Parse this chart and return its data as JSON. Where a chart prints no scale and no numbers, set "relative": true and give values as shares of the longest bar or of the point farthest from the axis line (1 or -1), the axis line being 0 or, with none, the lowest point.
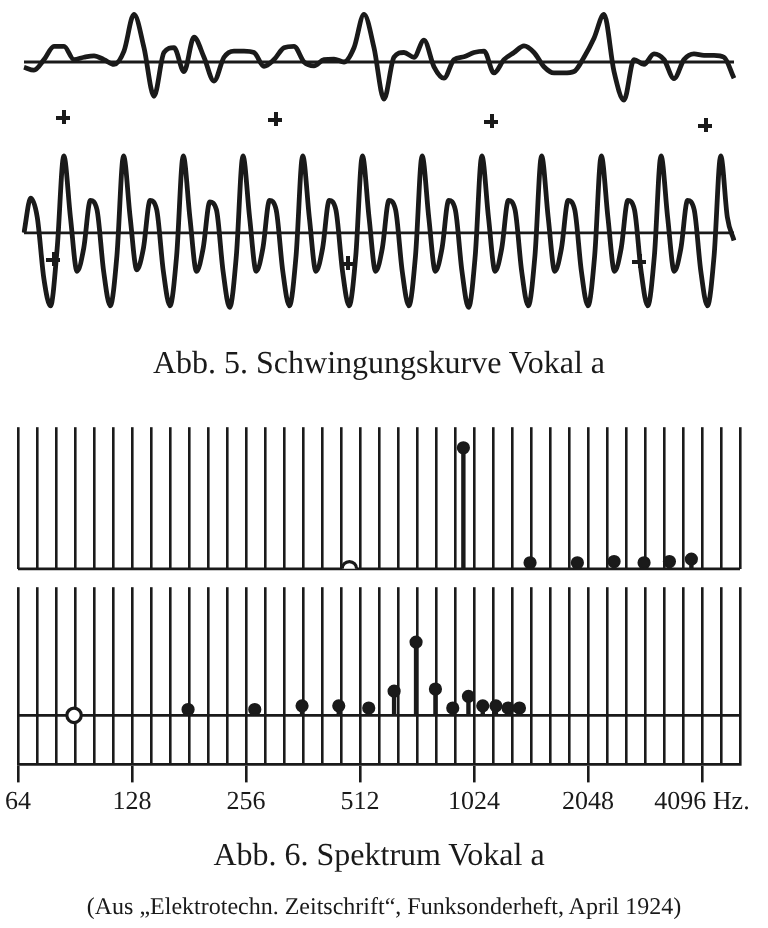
{
  "chart_data": [
    {
      "type": "line",
      "relative": true,
      "tick_labels": false,
      "grid": false,
      "legend": false,
      "marker": "none",
      "line_style": "solid",
      "categories": [
        null,
        null,
        null,
        null,
        null,
        null,
        null,
        null,
        null,
        null,
        null,
        null,
        null,
        null,
        null,
        null,
        null,
        null,
        null,
        null,
        null,
        null,
        null,
        null,
        null,
        null,
        null,
        null,
        null,
        null,
        null,
        null,
        null,
        null,
        null,
        null,
        null,
        null,
        null,
        null,
        null,
        null,
        null,
        null,
        null,
        null,
        null,
        null,
        null,
        null,
        null,
        null,
        null,
        null,
        null,
        null,
        null,
        null,
        null,
        null,
        null,
        null,
        null,
        null,
        null,
        null,
        null,
        null,
        null,
        null,
        null,
        null
      ],
      "series": [
        {
          "color": "#1a1a1a",
          "values": [
            -0.11,
            -0.17,
            0.05,
            0.33,
            0.33,
            0.05,
            0.1,
            0.13,
            0.05,
            -0.05,
            0.23,
            1,
            0.3,
            -0.72,
            0.2,
            0.3,
            -0.2,
            0.52,
            0.1,
            -0.4,
            0.1,
            0.23,
            0.23,
            0.2,
            -0.09,
            0.05,
            0.3,
            0.33,
            0,
            -0.08,
            0.05,
            0.06,
            0,
            0.3,
            1,
            0.3,
            -0.78,
            0.1,
            0.2,
            0.1,
            0.46,
            -0.1,
            -0.34,
            0.05,
            0.11,
            0.2,
            0.23,
            -0.23,
            0.05,
            0.2,
            0.34,
            0.2,
            -0.1,
            -0.23,
            -0.23,
            -0.2,
            0.1,
            0.5,
            1,
            -0.2,
            -0.8,
            0.05,
            -0.05,
            0.17,
            0.05,
            -0.35,
            0.05,
            0.17,
            0.14,
            0.14,
            0.1,
            -0.34
          ]
        }
      ]
    },
    {
      "type": "line",
      "relative": true,
      "tick_labels": false,
      "grid": false,
      "legend": false,
      "marker": "none",
      "line_style": "solid",
      "title": "Abb. 5. Schwingungskurve Vokal a",
      "categories": [
        null,
        null,
        null,
        null,
        null,
        null,
        null,
        null,
        null,
        null,
        null,
        null,
        null,
        null,
        null,
        null,
        null,
        null,
        null,
        null,
        null,
        null,
        null,
        null,
        null,
        null,
        null,
        null,
        null,
        null,
        null,
        null,
        null,
        null,
        null,
        null,
        null,
        null,
        null,
        null,
        null,
        null,
        null,
        null,
        null,
        null,
        null,
        null,
        null,
        null,
        null,
        null,
        null,
        null,
        null,
        null,
        null,
        null,
        null,
        null,
        null,
        null,
        null,
        null,
        null,
        null,
        null,
        null,
        null,
        null,
        null,
        null,
        null,
        null,
        null,
        null,
        null,
        null,
        null,
        null,
        null,
        null,
        null,
        null,
        null,
        null,
        null,
        null,
        null,
        null,
        null,
        null,
        null,
        null,
        null,
        null,
        null,
        null,
        null,
        null,
        null,
        null,
        null,
        null,
        null,
        null,
        null,
        null
      ],
      "series": [
        {
          "color": "#1a1a1a",
          "values": [
            0,
            0.45,
            0.2,
            -0.6,
            -0.95,
            -0.2,
            1,
            0.2,
            -0.5,
            -0.2,
            0.42,
            0.3,
            -0.5,
            -0.95,
            -0.3,
            1,
            0.2,
            -0.48,
            -0.2,
            0.42,
            0.3,
            -0.5,
            -0.95,
            -0.3,
            1,
            0.2,
            -0.5,
            -0.2,
            0.4,
            0.3,
            -0.5,
            -0.97,
            -0.3,
            1,
            0.2,
            -0.5,
            -0.2,
            0.42,
            0.3,
            -0.5,
            -0.95,
            -0.3,
            1,
            0.2,
            -0.5,
            -0.2,
            0.42,
            0.3,
            -0.5,
            -0.95,
            -0.3,
            1,
            0.2,
            -0.5,
            -0.2,
            0.42,
            0.3,
            -0.5,
            -0.95,
            -0.3,
            1,
            0.2,
            -0.5,
            -0.2,
            0.42,
            0.3,
            -0.5,
            -0.97,
            -0.3,
            1,
            0.2,
            -0.5,
            -0.2,
            0.42,
            0.3,
            -0.5,
            -0.95,
            -0.3,
            1,
            0.2,
            -0.5,
            -0.2,
            0.42,
            0.3,
            -0.5,
            -0.95,
            -0.3,
            1,
            0.2,
            -0.5,
            -0.2,
            0.42,
            0.3,
            -0.5,
            -0.95,
            -0.3,
            1,
            0.2,
            -0.5,
            -0.2,
            0.42,
            0.3,
            -0.5,
            -0.95,
            -0.3,
            1,
            0.2,
            -0.1
          ]
        }
      ]
    },
    {
      "type": "lollipop",
      "relative": true,
      "log": "x",
      "tick_labels": false,
      "grid": "x",
      "legend": false,
      "marker": "circle",
      "xlim": [
        64,
        5161
      ],
      "xticks": [
        64,
        71.8,
        80.6,
        90.5,
        101.6,
        114,
        128,
        143.7,
        161.3,
        181,
        203.2,
        228.1,
        256,
        287.4,
        322.5,
        362,
        406.4,
        456.1,
        512,
        574.7,
        645.1,
        724.1,
        812.7,
        912.3,
        1024,
        1149.4,
        1290.2,
        1448.2,
        1625.5,
        1824.6,
        2048,
        2298.8,
        2580.3,
        2896.3,
        3251,
        3649.1,
        4096,
        4597.6,
        5161
      ],
      "series": [
        {
          "type": "scatter",
          "color": "#1a1a1a",
          "x": [
            480
          ],
          "values": [
            0
          ]
        },
        {
          "type": "lollipop",
          "color": "#1a1a1a",
          "x": [
            960,
            1440,
            1920,
            2400,
            2880,
            3360,
            3840
          ],
          "values": [
            1,
            0.05,
            0.05,
            0.06,
            0.05,
            0.06,
            0.08
          ]
        }
      ]
    },
    {
      "type": "lollipop",
      "relative": true,
      "log": "x",
      "tick_labels": "x",
      "grid": "x",
      "legend": false,
      "marker": "circle",
      "title": "Abb. 6. Spektrum Vokal a",
      "annotations": [
        "(Aus „Elektrotechn. Zeitschrift“, Funksonderheft, April 1924)"
      ],
      "xlim": [
        64,
        5161
      ],
      "xticks": [
        {
          "value": 64,
          "label": "64"
        },
        {
          "value": 71.8,
          "label": null
        },
        {
          "value": 80.6,
          "label": null
        },
        {
          "value": 90.5,
          "label": null
        },
        {
          "value": 101.6,
          "label": null
        },
        {
          "value": 114,
          "label": null
        },
        {
          "value": 128,
          "label": "128"
        },
        {
          "value": 143.7,
          "label": null
        },
        {
          "value": 161.3,
          "label": null
        },
        {
          "value": 181,
          "label": null
        },
        {
          "value": 203.2,
          "label": null
        },
        {
          "value": 228.1,
          "label": null
        },
        {
          "value": 256,
          "label": "256"
        },
        {
          "value": 287.4,
          "label": null
        },
        {
          "value": 322.5,
          "label": null
        },
        {
          "value": 362,
          "label": null
        },
        {
          "value": 406.4,
          "label": null
        },
        {
          "value": 456.1,
          "label": null
        },
        {
          "value": 512,
          "label": "512"
        },
        {
          "value": 574.7,
          "label": null
        },
        {
          "value": 645.1,
          "label": null
        },
        {
          "value": 724.1,
          "label": null
        },
        {
          "value": 812.7,
          "label": null
        },
        {
          "value": 912.3,
          "label": null
        },
        {
          "value": 1024,
          "label": "1024"
        },
        {
          "value": 1149.4,
          "label": null
        },
        {
          "value": 1290.2,
          "label": null
        },
        {
          "value": 1448.2,
          "label": null
        },
        {
          "value": 1625.5,
          "label": null
        },
        {
          "value": 1824.6,
          "label": null
        },
        {
          "value": 2048,
          "label": "2048"
        },
        {
          "value": 2298.8,
          "label": null
        },
        {
          "value": 2580.3,
          "label": null
        },
        {
          "value": 2896.3,
          "label": null
        },
        {
          "value": 3251,
          "label": null
        },
        {
          "value": 3649.1,
          "label": null
        },
        {
          "value": 4096,
          "label": "4096 Hz."
        },
        {
          "value": 4597.6,
          "label": null
        },
        {
          "value": 5161,
          "label": null
        }
      ],
      "series": [
        {
          "type": "scatter",
          "color": "#1a1a1a",
          "x": [
            90
          ],
          "values": [
            0
          ]
        },
        {
          "type": "lollipop",
          "color": "#1a1a1a",
          "x": [
            180,
            270,
            360,
            450,
            540,
            630,
            720,
            810,
            900,
            990,
            1080,
            1170,
            1260,
            1350
          ],
          "values": [
            0.08,
            0.08,
            0.13,
            0.13,
            0.1,
            0.33,
            1,
            0.36,
            0.1,
            0.26,
            0.13,
            0.13,
            0.1,
            0.1
          ]
        }
      ]
    }
  ]
}
